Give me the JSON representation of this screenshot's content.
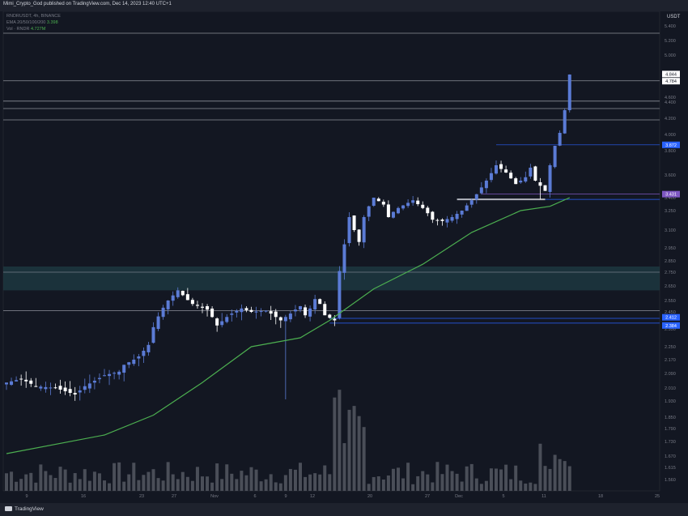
{
  "header": {
    "publish_line": "Mimi_Crypto_God published on TradingView.com, Dec 14, 2023 12:40 UTC+1"
  },
  "legend": {
    "symbol": "RNDRUSDT, 4h, BINANCE",
    "ema_label": "EMA 20/50/100/200",
    "ema_value": "3.398",
    "vol_label": "Vol · RNDR",
    "vol_value": "4.727M"
  },
  "price_axis": {
    "unit": "USDT",
    "tick_labels": [
      "5.400",
      "5.200",
      "5.000",
      "4.800",
      "4.600",
      "4.400",
      "4.200",
      "4.000",
      "3.800",
      "3.600",
      "3.400",
      "3.250",
      "3.100",
      "2.950",
      "2.850",
      "2.750",
      "2.650",
      "2.550",
      "2.450",
      "2.350",
      "2.250",
      "2.170",
      "2.090",
      "2.010",
      "1.930",
      "1.850",
      "1.790",
      "1.730",
      "1.670",
      "1.615",
      "1.560"
    ]
  },
  "time_axis": {
    "tick_labels": [
      "9",
      "16",
      "23",
      "27",
      "Nov",
      "6",
      "9",
      "12",
      "20",
      "27",
      "Dec",
      "5",
      "11",
      "18",
      "25"
    ]
  },
  "badges": {
    "last_price": "4.844",
    "countdown": "19:55",
    "level_4784": "4.784",
    "level_3872": "3.872",
    "level_3431": "3.431",
    "level_2412": "2.412",
    "level_2384": "2.384"
  },
  "colors": {
    "background": "#131722",
    "candle": "#ffffff",
    "candle_up": "#5b7bd5",
    "ema": "#4caf50",
    "zone": "#1f3c44",
    "h_line": "#8c8f99",
    "blue_line": "#2962ff",
    "purple_line": "#7e57c2",
    "volume": "#4a4e58"
  },
  "footer": {
    "brand": "TradingView",
    "icon": "tradingview-logo-icon"
  },
  "chart_data": {
    "type": "candlestick",
    "symbol": "RNDRUSDT",
    "interval": "4h",
    "exchange": "BINANCE",
    "x": [
      "9",
      "16",
      "23",
      "27",
      "Nov",
      "6",
      "9",
      "12",
      "20",
      "27",
      "Dec",
      "5",
      "11",
      "18",
      "25"
    ],
    "close_path": [
      [
        0,
        2.04
      ],
      [
        3,
        2.06
      ],
      [
        6,
        2.02
      ],
      [
        10,
        2.01
      ],
      [
        14,
        1.97
      ],
      [
        16,
        2.02
      ],
      [
        20,
        2.08
      ],
      [
        23,
        2.1
      ],
      [
        24,
        2.14
      ],
      [
        26,
        2.17
      ],
      [
        27,
        2.19
      ],
      [
        29,
        2.26
      ],
      [
        30,
        2.36
      ],
      [
        33,
        2.55
      ],
      [
        35,
        2.62
      ],
      [
        38,
        2.52
      ],
      [
        41,
        2.47
      ],
      [
        43,
        2.37
      ],
      [
        45,
        2.42
      ],
      [
        48,
        2.48
      ],
      [
        50,
        2.45
      ],
      [
        53,
        2.46
      ],
      [
        56,
        2.4
      ],
      [
        58,
        2.44
      ],
      [
        60,
        2.5
      ],
      [
        61,
        2.43
      ],
      [
        62,
        2.48
      ],
      [
        63,
        2.56
      ],
      [
        64,
        2.52
      ],
      [
        65,
        2.43
      ],
      [
        67,
        2.4
      ],
      [
        68,
        2.76
      ],
      [
        70,
        3.2
      ],
      [
        71,
        3.1
      ],
      [
        72,
        3.0
      ],
      [
        73,
        3.2
      ],
      [
        75,
        3.4
      ],
      [
        77,
        3.32
      ],
      [
        78,
        3.2
      ],
      [
        80,
        3.28
      ],
      [
        83,
        3.37
      ],
      [
        85,
        3.28
      ],
      [
        87,
        3.18
      ],
      [
        89,
        3.17
      ],
      [
        91,
        3.2
      ],
      [
        93,
        3.25
      ],
      [
        96,
        3.43
      ],
      [
        98,
        3.55
      ],
      [
        100,
        3.68
      ],
      [
        102,
        3.62
      ],
      [
        104,
        3.52
      ],
      [
        106,
        3.58
      ],
      [
        107,
        3.66
      ],
      [
        108,
        3.55
      ],
      [
        110,
        3.46
      ],
      [
        111,
        3.68
      ],
      [
        112,
        3.86
      ],
      [
        113,
        4.02
      ],
      [
        114,
        4.3
      ],
      [
        115,
        4.84
      ]
    ],
    "ema200": [
      [
        0,
        1.68
      ],
      [
        20,
        1.76
      ],
      [
        30,
        1.86
      ],
      [
        40,
        2.04
      ],
      [
        50,
        2.25
      ],
      [
        60,
        2.3
      ],
      [
        66,
        2.4
      ],
      [
        75,
        2.63
      ],
      [
        85,
        2.82
      ],
      [
        95,
        3.08
      ],
      [
        105,
        3.25
      ],
      [
        111,
        3.3
      ],
      [
        115,
        3.4
      ]
    ],
    "horizontal_levels": [
      5.3,
      4.784,
      4.44,
      4.32,
      4.18
    ],
    "support_levels": [
      3.872,
      3.431,
      3.38,
      2.412,
      2.384
    ],
    "zone": [
      2.62,
      2.8
    ],
    "y_range": [
      1.55,
      5.4
    ]
  }
}
